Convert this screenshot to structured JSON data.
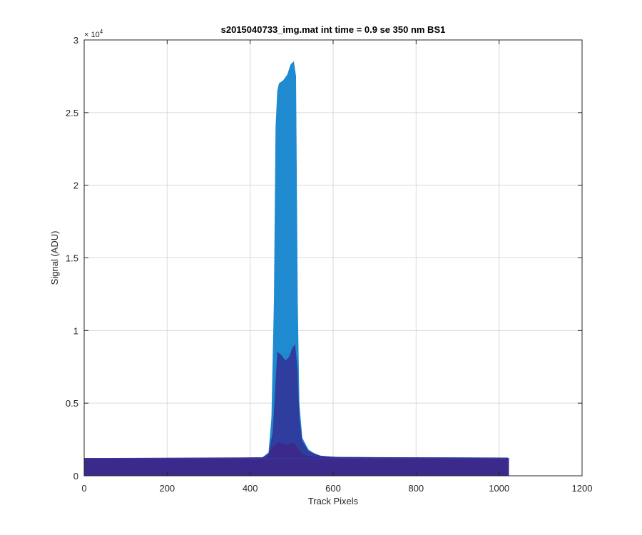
{
  "chart_data": {
    "type": "area",
    "title": "s2015040733_img.mat int time = 0.9 se  350 nm BS1",
    "xlabel": "Track Pixels",
    "ylabel": "Signal (ADU)",
    "xlim": [
      0,
      1200
    ],
    "ylim": [
      0,
      30000
    ],
    "xticks": [
      0,
      200,
      400,
      600,
      800,
      1000,
      1200
    ],
    "xtick_labels": [
      "0",
      "200",
      "400",
      "600",
      "800",
      "1000",
      "1200"
    ],
    "yticks": [
      0,
      5000,
      10000,
      15000,
      20000,
      25000,
      30000
    ],
    "ytick_labels": [
      "0",
      "0.5",
      "1",
      "1.5",
      "2",
      "2.5",
      "3"
    ],
    "y_exponent_base": "× 10",
    "y_exponent": "4",
    "grid": true,
    "series": [
      {
        "color": "#1f8ad0",
        "points": [
          [
            0,
            1200
          ],
          [
            360,
            1220
          ],
          [
            430,
            1250
          ],
          [
            445,
            1600
          ],
          [
            452,
            4000
          ],
          [
            458,
            12000
          ],
          [
            462,
            24000
          ],
          [
            466,
            26500
          ],
          [
            470,
            27000
          ],
          [
            480,
            27200
          ],
          [
            490,
            27600
          ],
          [
            498,
            28300
          ],
          [
            505,
            28500
          ],
          [
            510,
            27500
          ],
          [
            514,
            12000
          ],
          [
            518,
            5000
          ],
          [
            525,
            2600
          ],
          [
            540,
            1800
          ],
          [
            560,
            1400
          ],
          [
            600,
            1280
          ],
          [
            800,
            1250
          ],
          [
            1020,
            1230
          ],
          [
            1023,
            1200
          ]
        ]
      },
      {
        "color": "#2f3e9e",
        "points": [
          [
            0,
            1200
          ],
          [
            360,
            1220
          ],
          [
            430,
            1250
          ],
          [
            445,
            1500
          ],
          [
            455,
            3000
          ],
          [
            462,
            6500
          ],
          [
            466,
            8500
          ],
          [
            475,
            8300
          ],
          [
            485,
            7900
          ],
          [
            495,
            8200
          ],
          [
            502,
            8800
          ],
          [
            508,
            9000
          ],
          [
            513,
            7500
          ],
          [
            518,
            4000
          ],
          [
            525,
            2400
          ],
          [
            540,
            1700
          ],
          [
            570,
            1350
          ],
          [
            620,
            1260
          ],
          [
            800,
            1250
          ],
          [
            1020,
            1230
          ],
          [
            1023,
            1200
          ]
        ]
      },
      {
        "color": "#3b2a8c",
        "points": [
          [
            0,
            1200
          ],
          [
            440,
            1250
          ],
          [
            455,
            2000
          ],
          [
            470,
            2300
          ],
          [
            490,
            2100
          ],
          [
            505,
            2300
          ],
          [
            515,
            1800
          ],
          [
            530,
            1400
          ],
          [
            560,
            1280
          ],
          [
            1023,
            1200
          ]
        ]
      }
    ]
  }
}
